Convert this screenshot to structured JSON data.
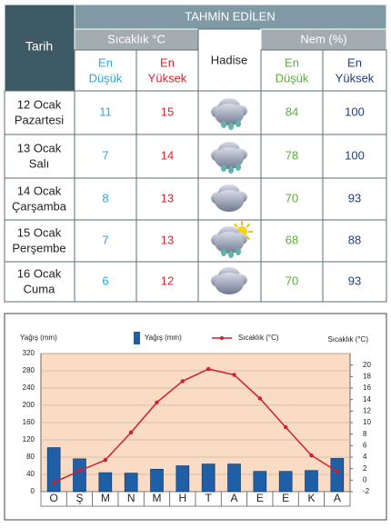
{
  "table": {
    "title": "TAHMİN EDİLEN",
    "date_header": "Tarih",
    "groups": [
      "Sıcaklık °C",
      "Hadise",
      "Nem (%)"
    ],
    "subheaders": [
      [
        "En",
        "Düşük"
      ],
      [
        "En",
        "Yüksek"
      ],
      [
        "En",
        "Düşük"
      ],
      [
        "En",
        "Yüksek"
      ]
    ],
    "rows": [
      {
        "date": [
          "12 Ocak",
          "Pazartesi"
        ],
        "values": [
          11,
          15,
          84,
          100
        ]
      },
      {
        "date": [
          "13 Ocak",
          "Salı"
        ],
        "values": [
          7,
          14,
          78,
          100
        ]
      },
      {
        "date": [
          "14 Ocak",
          "Çarşamba"
        ],
        "values": [
          8,
          13,
          70,
          93
        ]
      },
      {
        "date": [
          "15 Ocak",
          "Perşembe"
        ],
        "values": [
          7,
          13,
          68,
          88
        ]
      },
      {
        "date": [
          "16 Ocak",
          "Cuma"
        ],
        "values": [
          6,
          12,
          70,
          93
        ]
      }
    ]
  },
  "chart_data": {
    "type": "bar_line",
    "y_label": "Yağış (mm)",
    "y2_label": "Sıcaklık (°C)",
    "categories": [
      "O",
      "Ş",
      "M",
      "N",
      "M",
      "H",
      "T",
      "A",
      "E",
      "E",
      "K",
      "A"
    ],
    "series": [
      {
        "name": "Yağış (mm)",
        "color": "#1f5fa8",
        "type": "bar",
        "values": [
          102,
          76,
          44,
          43,
          52,
          60,
          64,
          64,
          47,
          47,
          49,
          77
        ]
      },
      {
        "name": "Sıcaklık (°C)",
        "color": "#d21f2b",
        "type": "line",
        "axis": "y2",
        "values": [
          -0.4,
          1.6,
          3.5,
          8.3,
          13.5,
          17.2,
          19.3,
          18.3,
          14.2,
          9.2,
          4.3,
          1.5
        ]
      }
    ],
    "ylim": [
      0,
      320
    ],
    "yticks": [
      0,
      40,
      80,
      120,
      160,
      200,
      240,
      280,
      320
    ],
    "y2lim": [
      -2,
      22
    ],
    "y2ticks": [
      -2,
      0,
      2,
      4,
      6,
      8,
      10,
      12,
      14,
      16,
      18,
      20
    ],
    "grid": true
  }
}
